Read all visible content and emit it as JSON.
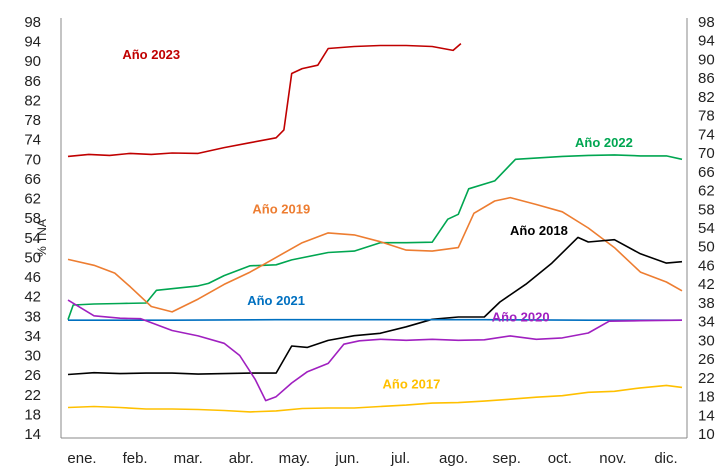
{
  "chart_data": {
    "type": "line",
    "title": "",
    "ylabel": "% TNA",
    "xlabel": "",
    "x_categories": [
      "ene.",
      "feb.",
      "mar.",
      "abr.",
      "may.",
      "jun.",
      "jul.",
      "ago.",
      "sep.",
      "oct.",
      "nov.",
      "dic."
    ],
    "left_axis": {
      "ylim": [
        14,
        98
      ],
      "ticks": [
        "98",
        "94",
        "90",
        "86",
        "82",
        "78",
        "74",
        "70",
        "66",
        "62",
        "58",
        "54",
        "50",
        "46",
        "42",
        "38",
        "34",
        "30",
        "26",
        "22",
        "18",
        "14"
      ]
    },
    "right_axis": {
      "ylim": [
        10,
        98
      ],
      "ticks": [
        "98",
        "94",
        "90",
        "86",
        "82",
        "78",
        "74",
        "70",
        "66",
        "62",
        "58",
        "54",
        "50",
        "46",
        "42",
        "38",
        "34",
        "30",
        "26",
        "22",
        "18",
        "14",
        "10"
      ]
    },
    "grid": false,
    "series": [
      {
        "name": "Año 2023",
        "color": "#C00000",
        "axis": "left",
        "points": [
          [
            0,
            70.6
          ],
          [
            0.4,
            71
          ],
          [
            0.8,
            70.8
          ],
          [
            1.2,
            71.2
          ],
          [
            1.6,
            71
          ],
          [
            2,
            71.3
          ],
          [
            2.5,
            71.2
          ],
          [
            3,
            72.4
          ],
          [
            3.5,
            73.4
          ],
          [
            4,
            74.4
          ],
          [
            4.15,
            76
          ],
          [
            4.3,
            87.5
          ],
          [
            4.5,
            88.5
          ],
          [
            4.8,
            89.2
          ],
          [
            5,
            92.6
          ],
          [
            5.5,
            93
          ],
          [
            6,
            93.2
          ],
          [
            6.5,
            93.2
          ],
          [
            7,
            93
          ],
          [
            7.4,
            92.2
          ],
          [
            7.55,
            93.6
          ]
        ]
      },
      {
        "name": "Año 2022",
        "color": "#00A651",
        "axis": "left",
        "points": [
          [
            0,
            37.3
          ],
          [
            0.1,
            40.3
          ],
          [
            0.5,
            40.5
          ],
          [
            1,
            40.6
          ],
          [
            1.5,
            40.7
          ],
          [
            1.7,
            43.3
          ],
          [
            2.5,
            44.2
          ],
          [
            2.7,
            44.7
          ],
          [
            3,
            46.3
          ],
          [
            3.5,
            48.3
          ],
          [
            4,
            48.5
          ],
          [
            4.3,
            49.5
          ],
          [
            5,
            51
          ],
          [
            5.5,
            51.3
          ],
          [
            6,
            53
          ],
          [
            6.5,
            53
          ],
          [
            7,
            53.1
          ],
          [
            7.3,
            57.8
          ],
          [
            7.5,
            58.8
          ],
          [
            7.7,
            64
          ],
          [
            8.2,
            65.6
          ],
          [
            8.6,
            70
          ],
          [
            9.5,
            70.6
          ],
          [
            10,
            70.8
          ],
          [
            10.5,
            70.9
          ],
          [
            11,
            70.7
          ],
          [
            11.5,
            70.7
          ],
          [
            11.8,
            70
          ]
        ]
      },
      {
        "name": "Año 2019",
        "color": "#ED7D31",
        "axis": "left",
        "points": [
          [
            0,
            49.6
          ],
          [
            0.5,
            48.4
          ],
          [
            0.9,
            46.8
          ],
          [
            1.2,
            44
          ],
          [
            1.6,
            40
          ],
          [
            2,
            38.9
          ],
          [
            2.5,
            41.5
          ],
          [
            3,
            44.5
          ],
          [
            3.5,
            47
          ],
          [
            4,
            50
          ],
          [
            4.5,
            53
          ],
          [
            5,
            55
          ],
          [
            5.5,
            54.6
          ],
          [
            6,
            53.2
          ],
          [
            6.5,
            51.5
          ],
          [
            7,
            51.3
          ],
          [
            7.5,
            52
          ],
          [
            7.8,
            59
          ],
          [
            8.2,
            61.5
          ],
          [
            8.5,
            62.2
          ],
          [
            9,
            60.8
          ],
          [
            9.5,
            59.3
          ],
          [
            10,
            56
          ],
          [
            10.5,
            52
          ],
          [
            11,
            47
          ],
          [
            11.5,
            45
          ],
          [
            11.8,
            43.2
          ]
        ]
      },
      {
        "name": "Año 2018",
        "color": "#000000",
        "axis": "right",
        "points": [
          [
            0,
            22.7
          ],
          [
            0.5,
            23.1
          ],
          [
            1,
            22.9
          ],
          [
            1.5,
            23
          ],
          [
            2,
            23
          ],
          [
            2.5,
            22.8
          ],
          [
            3,
            22.9
          ],
          [
            3.5,
            23
          ],
          [
            4,
            23
          ],
          [
            4.3,
            28.8
          ],
          [
            4.6,
            28.5
          ],
          [
            5,
            30
          ],
          [
            5.5,
            31
          ],
          [
            6,
            31.5
          ],
          [
            6.5,
            32.9
          ],
          [
            7,
            34.5
          ],
          [
            7.5,
            35
          ],
          [
            8,
            35
          ],
          [
            8.3,
            38.2
          ],
          [
            8.8,
            42
          ],
          [
            9.3,
            46.5
          ],
          [
            9.8,
            52
          ],
          [
            10,
            51
          ],
          [
            10.5,
            51.5
          ],
          [
            11,
            48.5
          ],
          [
            11.5,
            46.5
          ],
          [
            11.8,
            46.8
          ]
        ]
      },
      {
        "name": "Año 2021",
        "color": "#0070C0",
        "axis": "left",
        "points": [
          [
            0,
            37.2
          ],
          [
            2,
            37.2
          ],
          [
            4,
            37.3
          ],
          [
            6,
            37.3
          ],
          [
            8,
            37.3
          ],
          [
            10,
            37.2
          ],
          [
            11.8,
            37.2
          ]
        ]
      },
      {
        "name": "Año 2020",
        "color": "#A020C0",
        "axis": "left",
        "points": [
          [
            0,
            41.3
          ],
          [
            0.5,
            38.1
          ],
          [
            1,
            37.6
          ],
          [
            1.4,
            37.5
          ],
          [
            2,
            35.1
          ],
          [
            2.5,
            34
          ],
          [
            3,
            32.5
          ],
          [
            3.3,
            30
          ],
          [
            3.6,
            25.1
          ],
          [
            3.8,
            20.8
          ],
          [
            4,
            21.6
          ],
          [
            4.3,
            24.4
          ],
          [
            4.6,
            26.7
          ],
          [
            5,
            28.4
          ],
          [
            5.3,
            32.3
          ],
          [
            5.6,
            33
          ],
          [
            6,
            33.3
          ],
          [
            6.5,
            33.1
          ],
          [
            7,
            33.3
          ],
          [
            7.5,
            33.1
          ],
          [
            8,
            33.2
          ],
          [
            8.5,
            34
          ],
          [
            9,
            33.3
          ],
          [
            9.5,
            33.6
          ],
          [
            10,
            34.6
          ],
          [
            10.4,
            37
          ],
          [
            11,
            37.1
          ],
          [
            11.8,
            37.2
          ]
        ]
      },
      {
        "name": "Año 2017",
        "color": "#FFC000",
        "axis": "left",
        "points": [
          [
            0,
            19.4
          ],
          [
            0.5,
            19.6
          ],
          [
            1,
            19.4
          ],
          [
            1.5,
            19.1
          ],
          [
            2,
            19.1
          ],
          [
            2.5,
            19
          ],
          [
            3,
            18.8
          ],
          [
            3.5,
            18.5
          ],
          [
            4,
            18.7
          ],
          [
            4.5,
            19.2
          ],
          [
            5,
            19.3
          ],
          [
            5.5,
            19.3
          ],
          [
            6,
            19.6
          ],
          [
            6.5,
            19.9
          ],
          [
            7,
            20.3
          ],
          [
            7.5,
            20.4
          ],
          [
            8,
            20.7
          ],
          [
            8.5,
            21.1
          ],
          [
            9,
            21.5
          ],
          [
            9.5,
            21.8
          ],
          [
            10,
            22.5
          ],
          [
            10.5,
            22.7
          ],
          [
            11,
            23.4
          ],
          [
            11.5,
            23.9
          ],
          [
            11.8,
            23.5
          ]
        ]
      }
    ],
    "labels": [
      {
        "text": "Año 2023",
        "color": "#C00000",
        "x": 1.6,
        "y": 90.5
      },
      {
        "text": "Año 2022",
        "color": "#00A651",
        "x": 10.3,
        "y": 72.5
      },
      {
        "text": "Año 2019",
        "color": "#ED7D31",
        "x": 4.1,
        "y": 59
      },
      {
        "text": "Año 2018",
        "color": "#000000",
        "x": 9.05,
        "y": 52.5,
        "axis": "right"
      },
      {
        "text": "Año 2021",
        "color": "#0070C0",
        "x": 4,
        "y": 40.3
      },
      {
        "text": "Año 2020",
        "color": "#A020C0",
        "x": 8.7,
        "y": 34,
        "axis": "right"
      },
      {
        "text": "Año 2017",
        "color": "#FFC000",
        "x": 6.6,
        "y": 23.3
      }
    ]
  }
}
